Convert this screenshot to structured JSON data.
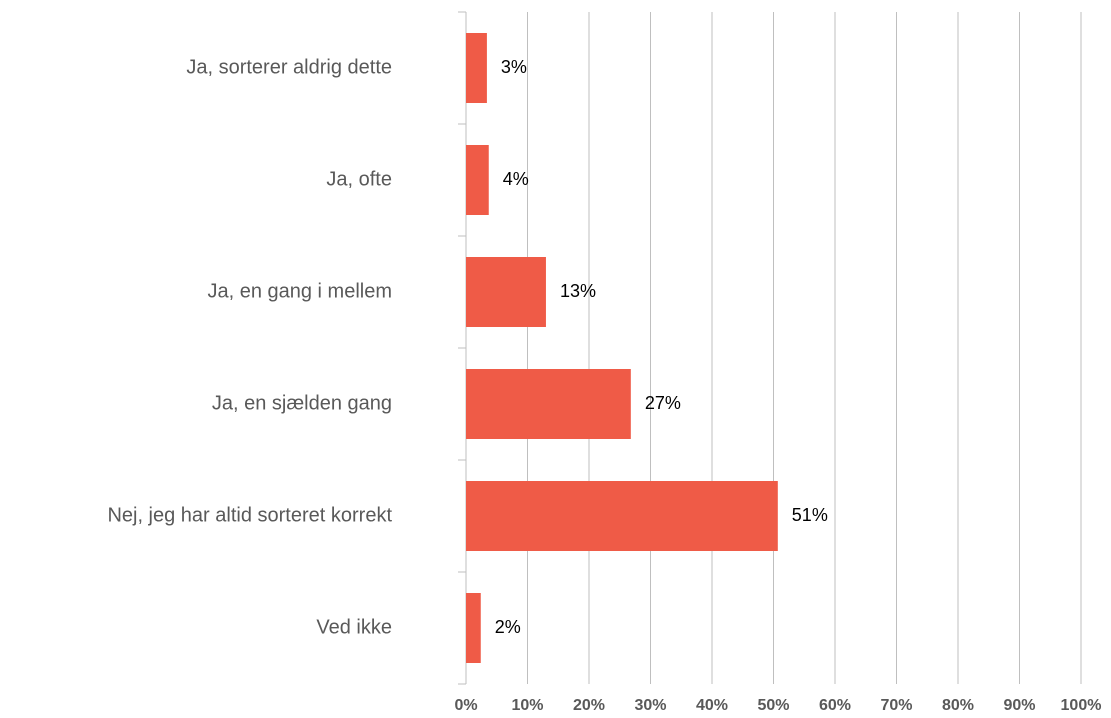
{
  "chart_data": {
    "type": "barh",
    "categories": [
      "Ja, sorterer aldrig dette",
      "Ja, ofte",
      "Ja, en gang i mellem",
      "Ja, en sjælden gang",
      "Nej, jeg har altid sorteret korrekt",
      "Ved ikke"
    ],
    "values": [
      3.4,
      3.7,
      13,
      26.8,
      50.7,
      2.4
    ],
    "value_labels": [
      "3%",
      "4%",
      "13%",
      "27%",
      "51%",
      "2%"
    ],
    "color": "#ef5b47",
    "xlim": [
      0,
      100
    ],
    "xticks": [
      {
        "value": 0,
        "label": "0%"
      },
      {
        "value": 10,
        "label": "10%"
      },
      {
        "value": 20,
        "label": "20%"
      },
      {
        "value": 30,
        "label": "30%"
      },
      {
        "value": 40,
        "label": "40%"
      },
      {
        "value": 50,
        "label": "50%"
      },
      {
        "value": 60,
        "label": "60%"
      },
      {
        "value": 70,
        "label": "70%"
      },
      {
        "value": 80,
        "label": "80%"
      },
      {
        "value": 90,
        "label": "90%"
      },
      {
        "value": 100,
        "label": "100%"
      }
    ],
    "grid": true
  }
}
